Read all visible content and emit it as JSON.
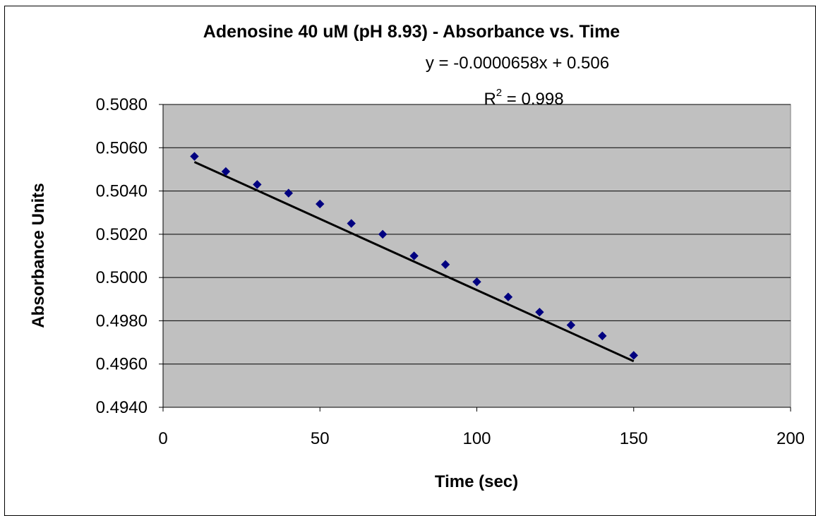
{
  "chart_data": {
    "type": "scatter",
    "title": "Adenosine 40 uM (pH 8.93) - Absorbance vs. Time",
    "xlabel": "Time (sec)",
    "ylabel": "Absorbance Units",
    "xlim": [
      0,
      200
    ],
    "ylim": [
      0.494,
      0.508
    ],
    "x_ticks": [
      "0",
      "50",
      "100",
      "150",
      "200"
    ],
    "y_ticks": [
      "0.4940",
      "0.4960",
      "0.4980",
      "0.5000",
      "0.5020",
      "0.5040",
      "0.5060",
      "0.5080"
    ],
    "grid": true,
    "legend": "none",
    "series": [
      {
        "x": [
          10,
          20,
          30,
          40,
          50,
          60,
          70,
          80,
          90,
          100,
          110,
          120,
          130,
          140,
          150
        ],
        "y": [
          0.5056,
          0.5049,
          0.5043,
          0.5039,
          0.5034,
          0.5025,
          0.502,
          0.501,
          0.5006,
          0.4998,
          0.4991,
          0.4984,
          0.4978,
          0.4973,
          0.4964
        ],
        "color": "#000080",
        "marker": "diamond"
      }
    ],
    "trendline": {
      "type": "linear",
      "slope": -6.58e-05,
      "intercept": 0.506,
      "x_range": [
        10,
        150
      ],
      "color": "#000000",
      "equation_label": "y = -0.0000658x + 0.506",
      "r2_prefix": "R",
      "r2_exponent": "2",
      "r2_suffix": " = 0.998"
    },
    "plot_background": "#c0c0c0",
    "gridline_color": "#000000"
  }
}
